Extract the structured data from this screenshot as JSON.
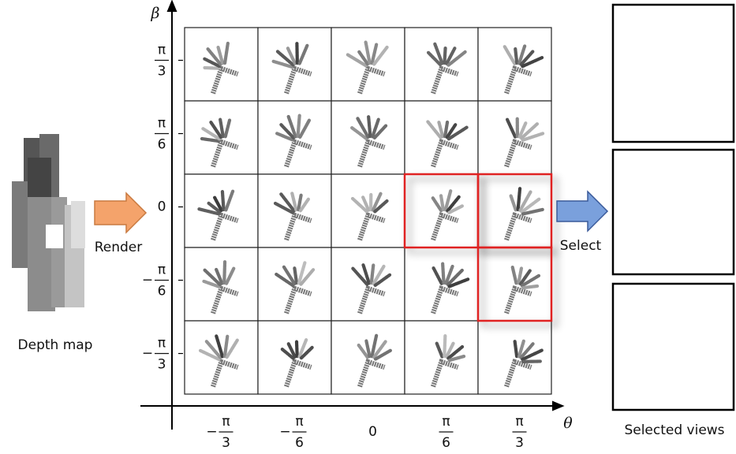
{
  "labels": {
    "depth_map": "Depth map",
    "render": "Render",
    "select": "Select",
    "selected_views": "Selected views"
  },
  "axes": {
    "y_label": "β",
    "x_label": "θ",
    "y_ticks": [
      {
        "num": "π",
        "den": "3"
      },
      {
        "num": "π",
        "den": "6"
      },
      {
        "text": "0"
      },
      {
        "sign": "−",
        "num": "π",
        "den": "6"
      },
      {
        "sign": "−",
        "num": "π",
        "den": "3"
      }
    ],
    "x_ticks": [
      {
        "sign": "−",
        "num": "π",
        "den": "3"
      },
      {
        "sign": "−",
        "num": "π",
        "den": "6"
      },
      {
        "text": "0"
      },
      {
        "num": "π",
        "den": "6"
      },
      {
        "num": "π",
        "den": "3"
      }
    ]
  }
}
